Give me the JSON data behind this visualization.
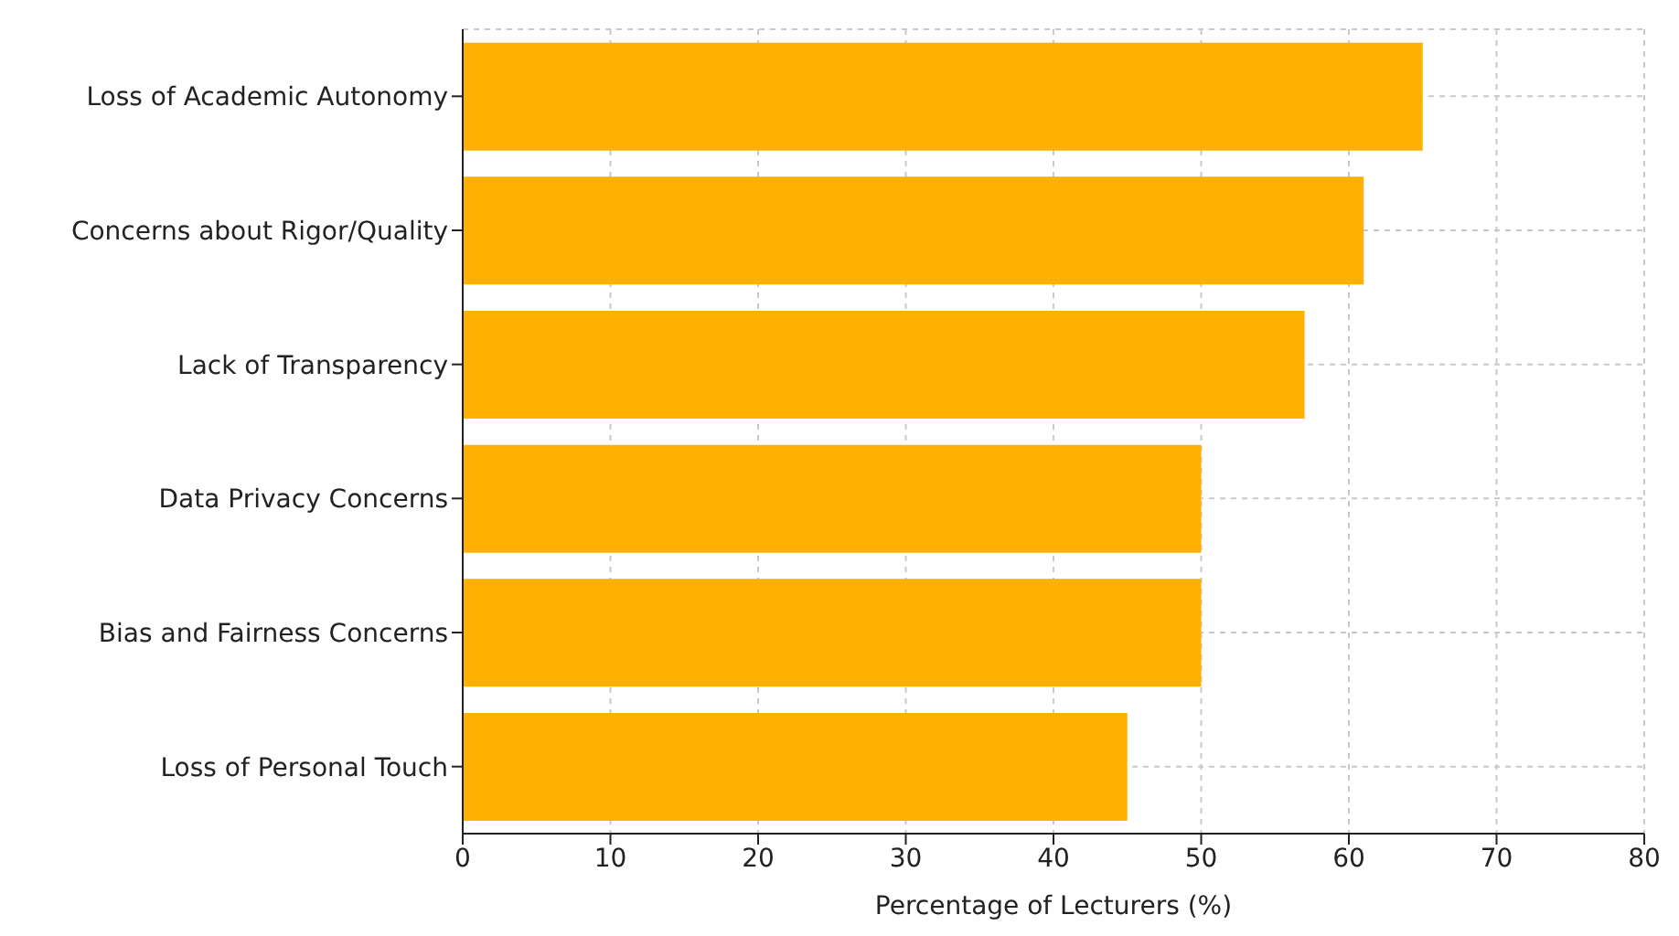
{
  "chart_data": {
    "type": "bar",
    "orientation": "horizontal",
    "xlabel": "Percentage of Lecturers (%)",
    "categories": [
      "Loss of Academic Autonomy",
      "Concerns about Rigor/Quality",
      "Lack of Transparency",
      "Data Privacy Concerns",
      "Bias and Fairness Concerns",
      "Loss of Personal Touch"
    ],
    "values": [
      65,
      61,
      57,
      50,
      50,
      45
    ],
    "color": "#ffb000",
    "xlim": [
      0,
      80
    ],
    "xticks": [
      0,
      10,
      20,
      30,
      40,
      50,
      60,
      70,
      80
    ],
    "grid": true
  }
}
